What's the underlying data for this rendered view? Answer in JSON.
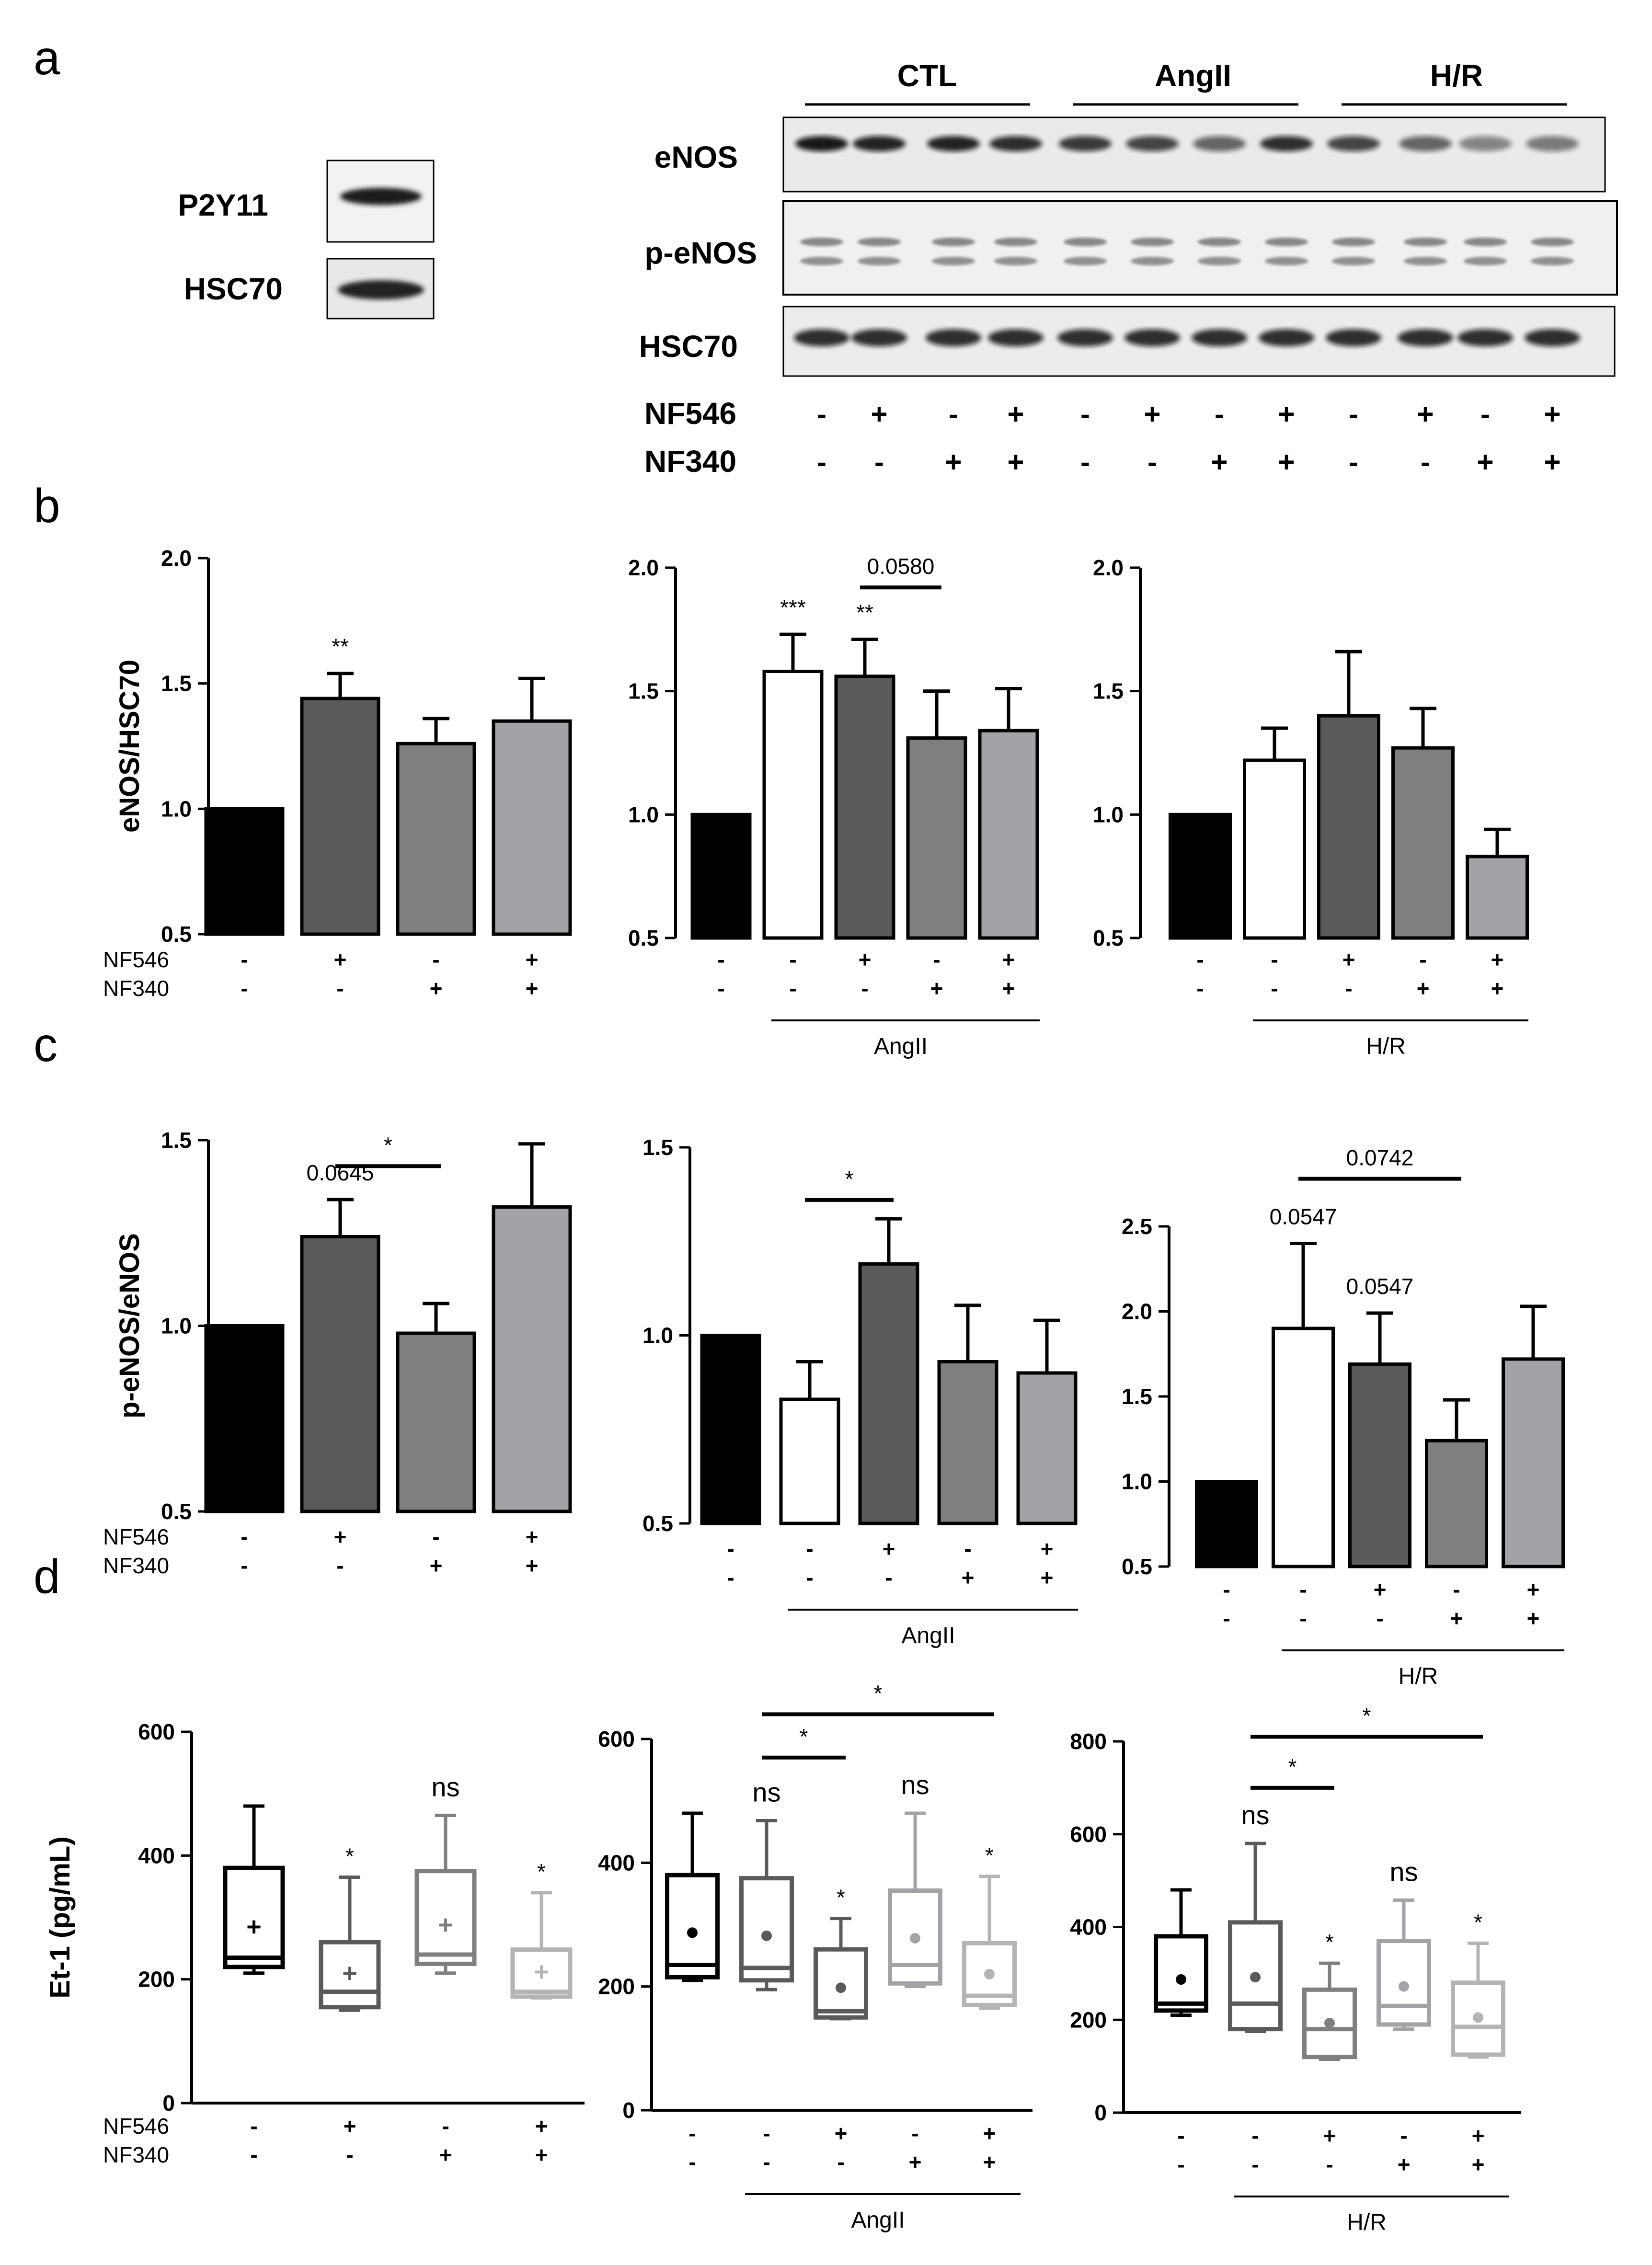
{
  "panel_letters": {
    "a": "a",
    "b": "b",
    "c": "c",
    "d": "d"
  },
  "blot_left": {
    "rows": [
      "P2Y11",
      "HSC70"
    ]
  },
  "blot_right": {
    "groups": [
      "CTL",
      "AngII",
      "H/R"
    ],
    "rows": [
      "eNOS",
      "p-eNOS",
      "HSC70"
    ],
    "treatments": [
      {
        "label": "NF546",
        "signs": [
          "-",
          "+",
          "-",
          "+",
          "-",
          "+",
          "-",
          "+",
          "-",
          "+",
          "-",
          "+"
        ]
      },
      {
        "label": "NF340",
        "signs": [
          "-",
          "-",
          "+",
          "+",
          "-",
          "-",
          "+",
          "+",
          "-",
          "-",
          "+",
          "+"
        ]
      }
    ]
  },
  "colors": {
    "black": "#000000",
    "dark_gray": "#5a5a5a",
    "mid_gray": "#7f7f7f",
    "light_gray": "#a3a3a7",
    "white": "#ffffff",
    "box_light": "#b4b4b4"
  },
  "chart_data": [
    {
      "type": "bar",
      "panel": "b",
      "ylabel": "eNOS/HSC70",
      "ylim": [
        0.5,
        2.0
      ],
      "yticks": [
        "0.5",
        "1.0",
        "1.5",
        "2.0"
      ],
      "values": [
        1.0,
        1.44,
        1.26,
        1.35
      ],
      "errors": [
        0,
        0.1,
        0.1,
        0.17
      ],
      "fills": [
        "#000000",
        "#5a5a5a",
        "#7f7f7f",
        "#a3a3a7"
      ],
      "annotations": [
        "",
        "**",
        "",
        ""
      ],
      "brackets": [],
      "rows": [
        {
          "label": "NF546",
          "signs": [
            "-",
            "+",
            "-",
            "+"
          ]
        },
        {
          "label": "NF340",
          "signs": [
            "-",
            "-",
            "+",
            "+"
          ]
        }
      ],
      "group_label": null
    },
    {
      "type": "bar",
      "panel": "b",
      "ylabel": "",
      "ylim": [
        0.5,
        2.0
      ],
      "yticks": [
        "0.5",
        "1.0",
        "1.5",
        "2.0"
      ],
      "values": [
        1.0,
        1.58,
        1.56,
        1.31,
        1.34
      ],
      "errors": [
        0,
        0.15,
        0.15,
        0.19,
        0.17
      ],
      "fills": [
        "#000000",
        "#ffffff",
        "#5a5a5a",
        "#7f7f7f",
        "#a3a3a7"
      ],
      "annotations": [
        "",
        "***",
        "**",
        "",
        ""
      ],
      "brackets": [
        {
          "from": 2,
          "to": 3,
          "y": 1.92,
          "label": "0.0580"
        }
      ],
      "rows": [
        {
          "label": "",
          "signs": [
            "-",
            "-",
            "+",
            "-",
            "+"
          ]
        },
        {
          "label": "",
          "signs": [
            "-",
            "-",
            "-",
            "+",
            "+"
          ]
        }
      ],
      "group_label": "AngII"
    },
    {
      "type": "bar",
      "panel": "b",
      "ylabel": "",
      "ylim": [
        0.5,
        2.0
      ],
      "yticks": [
        "0.5",
        "1.0",
        "1.5",
        "2.0"
      ],
      "values": [
        1.0,
        1.22,
        1.4,
        1.27,
        0.83
      ],
      "errors": [
        0,
        0.13,
        0.26,
        0.16,
        0.11
      ],
      "fills": [
        "#000000",
        "#ffffff",
        "#5a5a5a",
        "#7f7f7f",
        "#a3a3a7"
      ],
      "annotations": [
        "",
        "",
        "",
        "",
        ""
      ],
      "brackets": [],
      "rows": [
        {
          "label": "",
          "signs": [
            "-",
            "-",
            "+",
            "-",
            "+"
          ]
        },
        {
          "label": "",
          "signs": [
            "-",
            "-",
            "-",
            "+",
            "+"
          ]
        }
      ],
      "group_label": "H/R"
    },
    {
      "type": "bar",
      "panel": "c",
      "ylabel": "p-eNOS/eNOS",
      "ylim": [
        0.5,
        1.5
      ],
      "yticks": [
        "0.5",
        "1.0",
        "1.5"
      ],
      "values": [
        1.0,
        1.24,
        0.98,
        1.32
      ],
      "errors": [
        0,
        0.1,
        0.08,
        0.17
      ],
      "fills": [
        "#000000",
        "#5a5a5a",
        "#7f7f7f",
        "#a3a3a7"
      ],
      "annotations": [
        "",
        "0.0645",
        "",
        ""
      ],
      "brackets": [
        {
          "from": 1,
          "to": 2,
          "y": 1.43,
          "label": "*"
        }
      ],
      "rows": [
        {
          "label": "NF546",
          "signs": [
            "-",
            "+",
            "-",
            "+"
          ]
        },
        {
          "label": "NF340",
          "signs": [
            "-",
            "-",
            "+",
            "+"
          ]
        }
      ],
      "group_label": null
    },
    {
      "type": "bar",
      "panel": "c",
      "ylabel": "",
      "ylim": [
        0.5,
        1.5
      ],
      "yticks": [
        "0.5",
        "1.0",
        "1.5"
      ],
      "values": [
        1.0,
        0.83,
        1.19,
        0.93,
        0.9
      ],
      "errors": [
        0,
        0.1,
        0.12,
        0.15,
        0.14
      ],
      "fills": [
        "#000000",
        "#ffffff",
        "#5a5a5a",
        "#7f7f7f",
        "#a3a3a7"
      ],
      "annotations": [
        "",
        "",
        "",
        "",
        ""
      ],
      "brackets": [
        {
          "from": 1,
          "to": 2,
          "y": 1.36,
          "label": "*"
        }
      ],
      "rows": [
        {
          "label": "",
          "signs": [
            "-",
            "-",
            "+",
            "-",
            "+"
          ]
        },
        {
          "label": "",
          "signs": [
            "-",
            "-",
            "-",
            "+",
            "+"
          ]
        }
      ],
      "group_label": "AngII"
    },
    {
      "type": "bar",
      "panel": "c",
      "ylabel": "",
      "ylim": [
        0.5,
        2.5
      ],
      "yticks": [
        "0.5",
        "1.0",
        "1.5",
        "2.0",
        "2.5"
      ],
      "values": [
        1.0,
        1.9,
        1.69,
        1.24,
        1.72
      ],
      "errors": [
        0,
        0.5,
        0.3,
        0.24,
        0.31
      ],
      "fills": [
        "#000000",
        "#ffffff",
        "#5a5a5a",
        "#7f7f7f",
        "#a3a3a7"
      ],
      "annotations": [
        "",
        "0.0547",
        "0.0547",
        "",
        ""
      ],
      "brackets": [
        {
          "from": 1,
          "to": 3,
          "y": 2.78,
          "label": "0.0742"
        }
      ],
      "rows": [
        {
          "label": "",
          "signs": [
            "-",
            "-",
            "+",
            "-",
            "+"
          ]
        },
        {
          "label": "",
          "signs": [
            "-",
            "-",
            "-",
            "+",
            "+"
          ]
        }
      ],
      "group_label": "H/R"
    },
    {
      "type": "box",
      "panel": "d",
      "ylabel": "Et-1 (pg/mL)",
      "ylim": [
        0,
        600
      ],
      "yticks": [
        "0",
        "200",
        "400",
        "600"
      ],
      "boxes": [
        {
          "min": 210,
          "q1": 220,
          "median": 235,
          "q3": 380,
          "max": 480,
          "mean": 285,
          "color": "#000000"
        },
        {
          "min": 150,
          "q1": 155,
          "median": 180,
          "q3": 260,
          "max": 365,
          "mean": 210,
          "color": "#5a5a5a"
        },
        {
          "min": 210,
          "q1": 225,
          "median": 240,
          "q3": 375,
          "max": 465,
          "mean": 288,
          "color": "#7f7f7f"
        },
        {
          "min": 170,
          "q1": 172,
          "median": 180,
          "q3": 248,
          "max": 340,
          "mean": 212,
          "color": "#b4b4b4"
        }
      ],
      "annotations": [
        "",
        "*",
        "ns",
        "*"
      ],
      "brackets": [],
      "rows": [
        {
          "label": "NF546",
          "signs": [
            "-",
            "+",
            "-",
            "+"
          ]
        },
        {
          "label": "NF340",
          "signs": [
            "-",
            "-",
            "+",
            "+"
          ]
        }
      ],
      "group_label": null
    },
    {
      "type": "box",
      "panel": "d",
      "ylabel": "",
      "ylim": [
        0,
        600
      ],
      "yticks": [
        "0",
        "200",
        "400",
        "600"
      ],
      "boxes": [
        {
          "min": 210,
          "q1": 215,
          "median": 235,
          "q3": 380,
          "max": 480,
          "mean": 287,
          "color": "#000000"
        },
        {
          "min": 195,
          "q1": 210,
          "median": 230,
          "q3": 375,
          "max": 468,
          "mean": 282,
          "color": "#5a5a5a"
        },
        {
          "min": 148,
          "q1": 150,
          "median": 160,
          "q3": 260,
          "max": 310,
          "mean": 198,
          "color": "#5a5a5a"
        },
        {
          "min": 200,
          "q1": 205,
          "median": 235,
          "q3": 355,
          "max": 480,
          "mean": 278,
          "color": "#a3a3a7"
        },
        {
          "min": 165,
          "q1": 170,
          "median": 185,
          "q3": 270,
          "max": 378,
          "mean": 220,
          "color": "#b4b4b4"
        }
      ],
      "annotations": [
        "",
        "ns",
        "*",
        "ns",
        "*"
      ],
      "brackets": [
        {
          "from": 1,
          "to": 2,
          "y": 570,
          "label": "*"
        },
        {
          "from": 1,
          "to": 4,
          "y": 640,
          "label": "*"
        }
      ],
      "rows": [
        {
          "label": "",
          "signs": [
            "-",
            "-",
            "+",
            "-",
            "+"
          ]
        },
        {
          "label": "",
          "signs": [
            "-",
            "-",
            "-",
            "+",
            "+"
          ]
        }
      ],
      "group_label": "AngII"
    },
    {
      "type": "box",
      "panel": "d",
      "ylabel": "",
      "ylim": [
        0,
        800
      ],
      "yticks": [
        "0",
        "200",
        "400",
        "600",
        "800"
      ],
      "boxes": [
        {
          "min": 210,
          "q1": 220,
          "median": 235,
          "q3": 380,
          "max": 480,
          "mean": 287,
          "color": "#000000"
        },
        {
          "min": 175,
          "q1": 180,
          "median": 235,
          "q3": 410,
          "max": 580,
          "mean": 292,
          "color": "#5a5a5a"
        },
        {
          "min": 115,
          "q1": 120,
          "median": 180,
          "q3": 265,
          "max": 322,
          "mean": 193,
          "color": "#7f7f7f"
        },
        {
          "min": 180,
          "q1": 190,
          "median": 230,
          "q3": 370,
          "max": 458,
          "mean": 272,
          "color": "#a3a3a7"
        },
        {
          "min": 120,
          "q1": 125,
          "median": 185,
          "q3": 280,
          "max": 365,
          "mean": 205,
          "color": "#b4b4b4"
        }
      ],
      "annotations": [
        "",
        "ns",
        "*",
        "ns",
        "*"
      ],
      "brackets": [
        {
          "from": 1,
          "to": 2,
          "y": 700,
          "label": "*"
        },
        {
          "from": 1,
          "to": 4,
          "y": 810,
          "label": "*"
        }
      ],
      "rows": [
        {
          "label": "",
          "signs": [
            "-",
            "-",
            "+",
            "-",
            "+"
          ]
        },
        {
          "label": "",
          "signs": [
            "-",
            "-",
            "-",
            "+",
            "+"
          ]
        }
      ],
      "group_label": "H/R"
    }
  ]
}
